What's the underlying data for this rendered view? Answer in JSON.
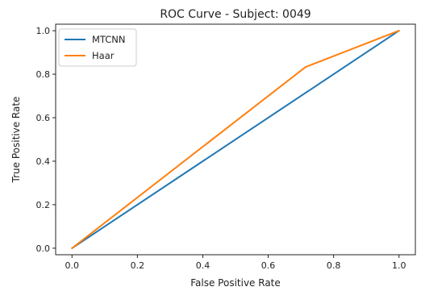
{
  "chart_data": {
    "type": "line",
    "title": "ROC Curve - Subject: 0049",
    "xlabel": "False Positive Rate",
    "ylabel": "True Positive Rate",
    "xlim": [
      -0.05,
      1.05
    ],
    "ylim": [
      -0.03,
      1.03
    ],
    "xticks": [
      "0.0",
      "0.2",
      "0.4",
      "0.6",
      "0.8",
      "1.0"
    ],
    "yticks": [
      "0.0",
      "0.2",
      "0.4",
      "0.6",
      "0.8",
      "1.0"
    ],
    "grid": false,
    "legend_position": "top-left",
    "series": [
      {
        "name": "MTCNN",
        "color": "#1f77b4",
        "x": [
          0.0,
          1.0
        ],
        "y": [
          0.0,
          1.0
        ]
      },
      {
        "name": "Haar",
        "color": "#ff7f0e",
        "x": [
          0.0,
          0.714,
          1.0
        ],
        "y": [
          0.0,
          0.833,
          1.0
        ]
      }
    ]
  }
}
